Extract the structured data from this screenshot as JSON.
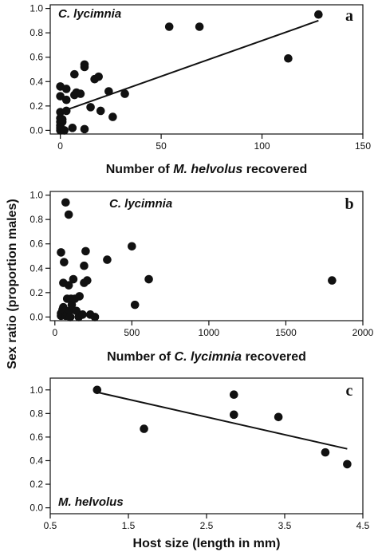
{
  "figure": {
    "shared_ylabel": "Sex ratio (proportion males)"
  },
  "chart_data": [
    {
      "type": "scatter",
      "panel_letter": "a",
      "species_label": "C. lycimnia",
      "xlabel_parts": [
        "Number of ",
        "M. helvolus",
        " recovered"
      ],
      "ylabel": "Sex ratio (proportion males)",
      "xlim": [
        -5,
        150
      ],
      "ylim": [
        -0.03,
        1.03
      ],
      "xticks": [
        0,
        50,
        100,
        150
      ],
      "yticks": [
        0.0,
        0.2,
        0.4,
        0.6,
        0.8,
        1.0
      ],
      "ytick_labels": [
        "0.0",
        "0.2",
        "0.4",
        "0.6",
        "0.8",
        "1.0"
      ],
      "points": [
        [
          0,
          0.0
        ],
        [
          0,
          0.02
        ],
        [
          0,
          0.04
        ],
        [
          0,
          0.07
        ],
        [
          0,
          0.1
        ],
        [
          0,
          0.15
        ],
        [
          0,
          0.28
        ],
        [
          0,
          0.36
        ],
        [
          1,
          0.07
        ],
        [
          1,
          0.09
        ],
        [
          2,
          0.0
        ],
        [
          3,
          0.25
        ],
        [
          3,
          0.34
        ],
        [
          3,
          0.16
        ],
        [
          6,
          0.02
        ],
        [
          7,
          0.29
        ],
        [
          7,
          0.46
        ],
        [
          8,
          0.31
        ],
        [
          10,
          0.3
        ],
        [
          12,
          0.52
        ],
        [
          12,
          0.54
        ],
        [
          12,
          0.01
        ],
        [
          15,
          0.19
        ],
        [
          17,
          0.42
        ],
        [
          19,
          0.44
        ],
        [
          20,
          0.16
        ],
        [
          24,
          0.32
        ],
        [
          26,
          0.11
        ],
        [
          32,
          0.3
        ],
        [
          54,
          0.85
        ],
        [
          69,
          0.85
        ],
        [
          113,
          0.59
        ],
        [
          128,
          0.95
        ]
      ],
      "fit_line": {
        "x": [
          0,
          128
        ],
        "y": [
          0.15,
          0.9
        ]
      }
    },
    {
      "type": "scatter",
      "panel_letter": "b",
      "species_label": "C. lycimnia",
      "xlabel_parts": [
        "Number of ",
        "C. lycimnia",
        " recovered"
      ],
      "ylabel": "Sex ratio (proportion males)",
      "xlim": [
        -30,
        2000
      ],
      "ylim": [
        -0.03,
        1.03
      ],
      "xticks": [
        0,
        500,
        1000,
        1500,
        2000
      ],
      "yticks": [
        0.0,
        0.2,
        0.4,
        0.6,
        0.8,
        1.0
      ],
      "ytick_labels": [
        "0.0",
        "0.2",
        "0.4",
        "0.6",
        "0.8",
        "1.0"
      ],
      "points": [
        [
          40,
          0.01
        ],
        [
          40,
          0.03
        ],
        [
          40,
          0.53
        ],
        [
          50,
          0.06
        ],
        [
          55,
          0.08
        ],
        [
          55,
          0.28
        ],
        [
          60,
          0.45
        ],
        [
          65,
          0.05
        ],
        [
          70,
          0.01
        ],
        [
          70,
          0.94
        ],
        [
          80,
          0.15
        ],
        [
          80,
          0.02
        ],
        [
          90,
          0.84
        ],
        [
          90,
          0.26
        ],
        [
          95,
          0.05
        ],
        [
          100,
          0.0
        ],
        [
          105,
          0.15
        ],
        [
          110,
          0.1
        ],
        [
          120,
          0.31
        ],
        [
          130,
          0.15
        ],
        [
          140,
          0.05
        ],
        [
          155,
          0.0
        ],
        [
          160,
          0.17
        ],
        [
          180,
          0.02
        ],
        [
          190,
          0.42
        ],
        [
          190,
          0.28
        ],
        [
          200,
          0.54
        ],
        [
          210,
          0.3
        ],
        [
          230,
          0.02
        ],
        [
          260,
          0.0
        ],
        [
          340,
          0.47
        ],
        [
          500,
          0.58
        ],
        [
          520,
          0.1
        ],
        [
          610,
          0.31
        ],
        [
          1800,
          0.3
        ]
      ]
    },
    {
      "type": "scatter",
      "panel_letter": "c",
      "species_label": "M. helvolus",
      "xlabel": "Host size (length in mm)",
      "ylabel": "Sex ratio (proportion males)",
      "xlim": [
        0.5,
        4.5
      ],
      "ylim": [
        -0.05,
        1.1
      ],
      "xticks": [
        0.5,
        1.5,
        2.5,
        3.5,
        4.5
      ],
      "yticks": [
        0.0,
        0.2,
        0.4,
        0.6,
        0.8,
        1.0
      ],
      "ytick_labels": [
        "0.0",
        "0.2",
        "0.4",
        "0.6",
        "0.8",
        "1.0"
      ],
      "points": [
        [
          1.1,
          1.0
        ],
        [
          1.7,
          0.67
        ],
        [
          2.85,
          0.96
        ],
        [
          2.85,
          0.79
        ],
        [
          3.42,
          0.77
        ],
        [
          4.02,
          0.47
        ],
        [
          4.3,
          0.37
        ]
      ],
      "fit_line": {
        "x": [
          1.1,
          4.3
        ],
        "y": [
          0.98,
          0.5
        ]
      }
    }
  ]
}
